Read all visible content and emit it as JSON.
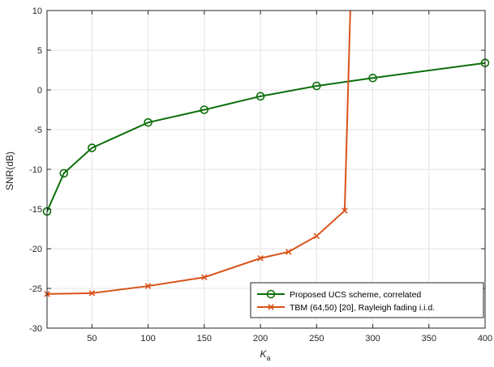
{
  "chart_data": {
    "type": "line",
    "xlabel": "K",
    "xlabel_sub": "a",
    "ylabel": "SNR(dB)",
    "xlim": [
      10,
      400
    ],
    "ylim": [
      -30,
      10
    ],
    "xticks": [
      50,
      100,
      150,
      200,
      250,
      300,
      350,
      400
    ],
    "yticks": [
      -30,
      -25,
      -20,
      -15,
      -10,
      -5,
      0,
      5,
      10
    ],
    "grid": true,
    "legend_position": "bottom-right",
    "series": [
      {
        "name": "Proposed UCS scheme, correlated",
        "color": "#0b6e0b",
        "marker": "circle",
        "x": [
          10,
          25,
          50,
          100,
          150,
          200,
          250,
          300,
          400
        ],
        "y": [
          -15.3,
          -10.5,
          -7.3,
          -4.1,
          -2.5,
          -0.8,
          0.5,
          1.5,
          3.4
        ]
      },
      {
        "name": "TBM (64,50) [20], Rayleigh fading i.i.d.",
        "color": "#d95319",
        "marker": "x",
        "x": [
          10,
          50,
          100,
          150,
          200,
          225,
          250,
          275,
          280
        ],
        "y": [
          -25.7,
          -25.6,
          -24.7,
          -23.6,
          -21.2,
          -20.4,
          -18.4,
          -15.2,
          10
        ]
      }
    ]
  }
}
